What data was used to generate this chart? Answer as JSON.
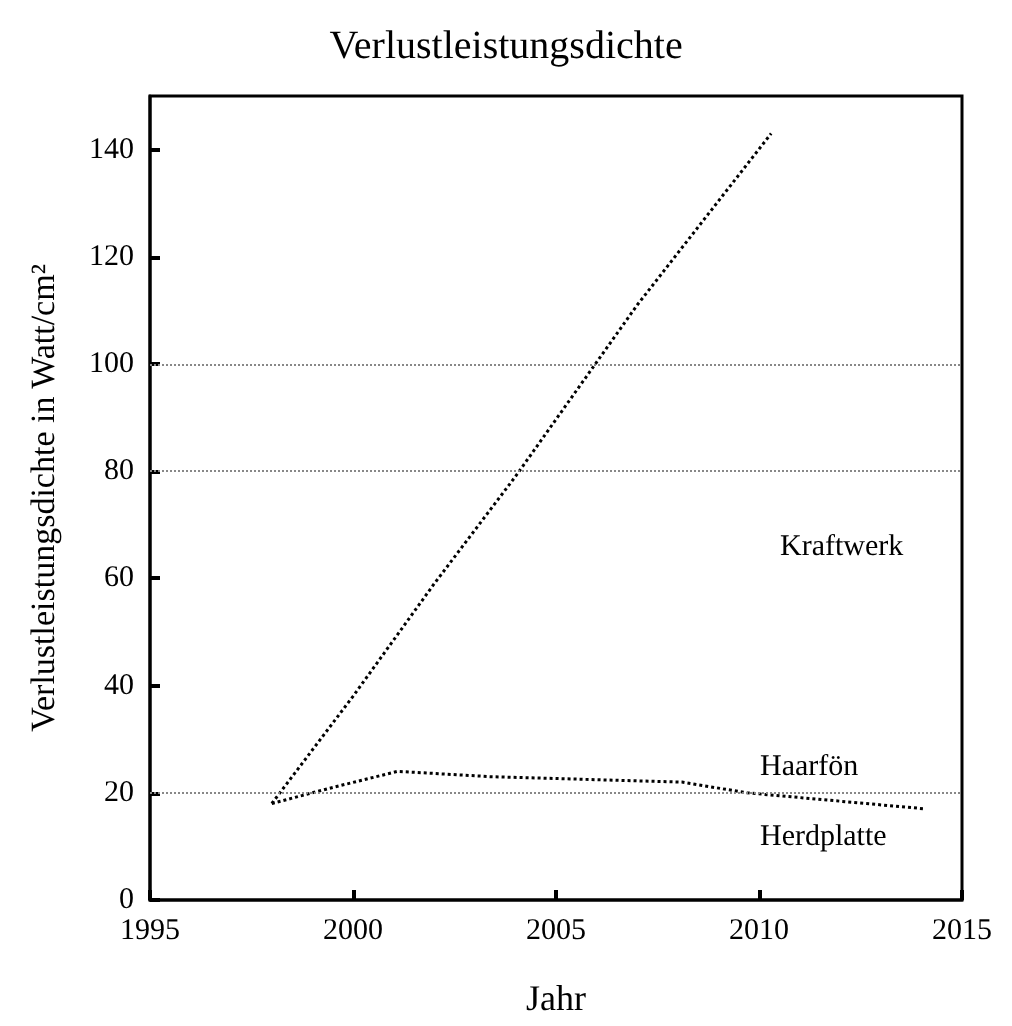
{
  "chart_data": {
    "type": "line",
    "title": "Verlustleistungsdichte",
    "xlabel": "Jahr",
    "ylabel": "Verlustleistungsdichte in Watt/cm²",
    "series": [
      {
        "color": "#000000",
        "x": [
          1998.0,
          2000,
          2002,
          2004,
          2007,
          2010.3
        ],
        "values": [
          18,
          38,
          59,
          79,
          111,
          143
        ]
      },
      {
        "color": "#000000",
        "x": [
          1998.0,
          1999.5,
          2001.1,
          2003.4,
          2008.1,
          2009.7,
          2014.1
        ],
        "values": [
          18,
          21,
          24,
          23,
          22,
          20,
          17
        ]
      }
    ],
    "xlim": [
      1995,
      2015
    ],
    "xticks": [
      1995,
      2000,
      2005,
      2010,
      2015
    ],
    "ylim": [
      0,
      150
    ],
    "yticks": [
      0,
      20,
      40,
      60,
      80,
      100,
      120,
      140
    ],
    "ref_lines": [
      {
        "axis": "y",
        "value": 20,
        "color": "#888888",
        "line_style": "dotted"
      },
      {
        "axis": "y",
        "value": 80,
        "color": "#888888",
        "line_style": "dotted"
      },
      {
        "axis": "y",
        "value": 100,
        "color": "#888888",
        "line_style": "dotted"
      }
    ],
    "annotations": [
      "Kraftwerk",
      "Haarfön",
      "Herdplatte"
    ],
    "grid": false,
    "marker": "none",
    "line_style": "dotted"
  }
}
